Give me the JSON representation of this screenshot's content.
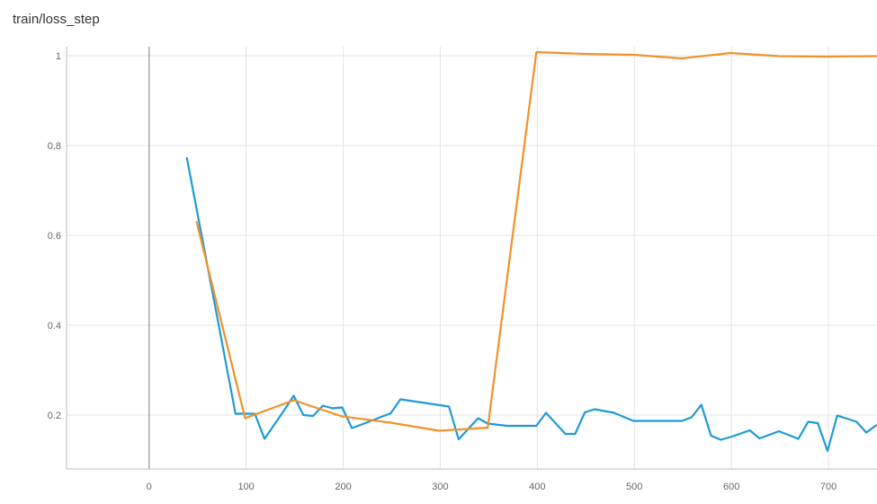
{
  "chart_data": {
    "type": "line",
    "title": "train/loss_step",
    "xlabel": "",
    "ylabel": "",
    "xlim": [
      -85,
      750
    ],
    "ylim": [
      0.08,
      1.02
    ],
    "x_ticks": [
      0,
      100,
      200,
      300,
      400,
      500,
      600,
      700
    ],
    "y_ticks": [
      0.2,
      0.4,
      0.6,
      0.8,
      1
    ],
    "y_tick_labels": [
      "0.2",
      "0.4",
      "0.6",
      "0.8",
      "1"
    ],
    "grid": true,
    "series": [
      {
        "color": "#1f9ad6",
        "points": [
          [
            39,
            0.772
          ],
          [
            70,
            0.42
          ],
          [
            89,
            0.203
          ],
          [
            109,
            0.203
          ],
          [
            119,
            0.147
          ],
          [
            139,
            0.21
          ],
          [
            149,
            0.243
          ],
          [
            159,
            0.2
          ],
          [
            169,
            0.198
          ],
          [
            179,
            0.221
          ],
          [
            189,
            0.215
          ],
          [
            199,
            0.217
          ],
          [
            209,
            0.171
          ],
          [
            219,
            0.179
          ],
          [
            249,
            0.204
          ],
          [
            259,
            0.235
          ],
          [
            309,
            0.219
          ],
          [
            319,
            0.146
          ],
          [
            339,
            0.193
          ],
          [
            349,
            0.181
          ],
          [
            369,
            0.176
          ],
          [
            399,
            0.176
          ],
          [
            409,
            0.205
          ],
          [
            429,
            0.158
          ],
          [
            439,
            0.158
          ],
          [
            449,
            0.206
          ],
          [
            459,
            0.213
          ],
          [
            479,
            0.205
          ],
          [
            499,
            0.187
          ],
          [
            549,
            0.187
          ],
          [
            559,
            0.195
          ],
          [
            569,
            0.223
          ],
          [
            579,
            0.154
          ],
          [
            589,
            0.145
          ],
          [
            599,
            0.151
          ],
          [
            619,
            0.166
          ],
          [
            629,
            0.148
          ],
          [
            649,
            0.164
          ],
          [
            669,
            0.147
          ],
          [
            679,
            0.185
          ],
          [
            689,
            0.182
          ],
          [
            699,
            0.12
          ],
          [
            709,
            0.199
          ],
          [
            729,
            0.185
          ],
          [
            739,
            0.161
          ],
          [
            749,
            0.177
          ]
        ]
      },
      {
        "color": "#f0912a",
        "points": [
          [
            49,
            0.63
          ],
          [
            99,
            0.193
          ],
          [
            149,
            0.233
          ],
          [
            199,
            0.197
          ],
          [
            249,
            0.183
          ],
          [
            299,
            0.165
          ],
          [
            349,
            0.172
          ],
          [
            399,
            1.008
          ],
          [
            449,
            1.004
          ],
          [
            499,
            1.002
          ],
          [
            549,
            0.994
          ],
          [
            599,
            1.006
          ],
          [
            649,
            0.999
          ],
          [
            699,
            0.998
          ],
          [
            750,
            0.999
          ]
        ]
      }
    ]
  }
}
